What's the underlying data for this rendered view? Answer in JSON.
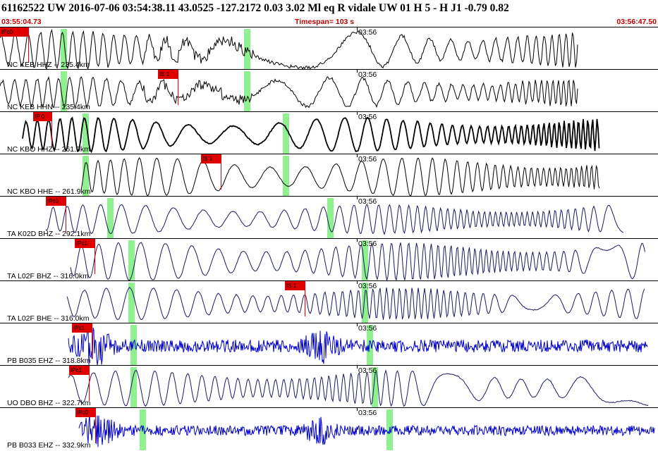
{
  "header": {
    "title": "61162522 UW 2016-07-06 03:54:38.11    43.0525 -127.2172    0.03   3.02 Ml   eq   R vidale    UW 01   H    5    -   H J1     -0.79   0.82"
  },
  "subheader": {
    "start_time": "03:55:04.73",
    "timespan": "Timespan= 103 s",
    "end_time": "03:56:47.50"
  },
  "time_marker": "03:56",
  "traces": [
    {
      "label": "NC KEB HHZ -- 235.4km",
      "pick": "IPc0",
      "color": "#000000",
      "style": "noisy",
      "amp": 0.45
    },
    {
      "label": "NC KEB HHN -- 235.4km",
      "pick": "IS 1",
      "color": "#000000",
      "style": "noisy",
      "amp": 0.35
    },
    {
      "label": "NC KBO HHZ -- 261.9km",
      "pick": "IP 0",
      "color": "#000000",
      "style": "thick",
      "amp": 0.4
    },
    {
      "label": "NC KBO HHE -- 261.9km",
      "pick": "IS 1",
      "color": "#000000",
      "style": "smooth",
      "amp": 0.45
    },
    {
      "label": "TA K02D BHZ -- 292.1km",
      "pick": "IPc0",
      "color": "#1a1a5e",
      "style": "smooth",
      "amp": 0.35
    },
    {
      "label": "TA L02F BHZ -- 316.0km",
      "pick": "IPc1",
      "color": "#1a1a5e",
      "style": "smooth",
      "amp": 0.45
    },
    {
      "label": "TA L02F BHE -- 316.0km",
      "pick": "IS 1",
      "color": "#1a1a5e",
      "style": "smooth",
      "amp": 0.38
    },
    {
      "label": "PB B035 EHZ -- 318.8km",
      "pick": "IPc1",
      "color": "#0000cc",
      "style": "hf",
      "amp": 0.15
    },
    {
      "label": "UO DBO BHZ -- 322.7km",
      "pick": "IPc1",
      "color": "#1a1a5e",
      "style": "smooth",
      "amp": 0.42
    },
    {
      "label": "PB B033 EHZ -- 332.9km",
      "pick": "IPc0",
      "color": "#0000cc",
      "style": "hf",
      "amp": 0.12
    }
  ]
}
